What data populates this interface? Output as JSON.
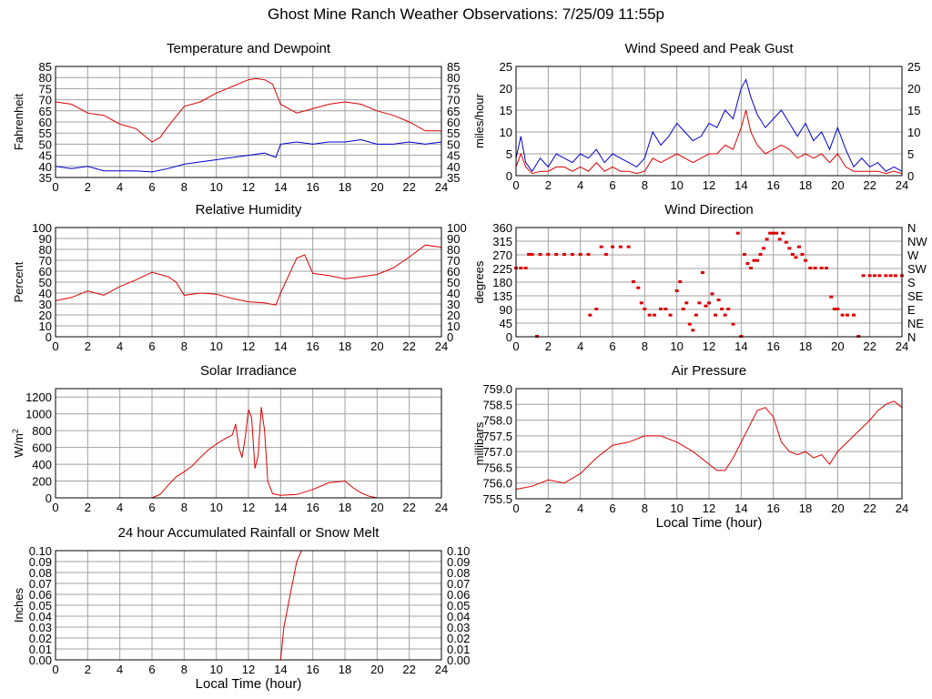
{
  "page": {
    "title": "Ghost Mine Ranch Weather Observations: 7/25/09 11:55p"
  },
  "colors": {
    "red": "#dd0000",
    "blue": "#0000cc",
    "grid": "#a0a0a0",
    "axis": "#000000"
  },
  "chart_data": [
    {
      "id": "temp",
      "type": "line",
      "title": "Temperature and Dewpoint",
      "xlabel": "",
      "ylabel": "Fahrenheit",
      "xlim": [
        0,
        24
      ],
      "ylim": [
        35,
        85
      ],
      "xticks": [
        0,
        2,
        4,
        6,
        8,
        10,
        12,
        14,
        16,
        18,
        20,
        22,
        24
      ],
      "yticks": [
        35,
        40,
        45,
        50,
        55,
        60,
        65,
        70,
        75,
        80,
        85
      ],
      "right_ticks": true,
      "series": [
        {
          "name": "Temperature",
          "color": "red",
          "x": [
            0,
            1,
            2,
            3,
            4,
            5,
            6,
            6.5,
            7,
            8,
            9,
            10,
            11,
            12,
            12.5,
            13,
            13.5,
            14,
            15,
            16,
            17,
            18,
            19,
            20,
            21,
            22,
            23,
            24
          ],
          "y": [
            69,
            68,
            64,
            63,
            59,
            57,
            51,
            53,
            58,
            67,
            69,
            73,
            76,
            79,
            79.5,
            79,
            77,
            68,
            64,
            66,
            68,
            69,
            68,
            65,
            63,
            60,
            56,
            56
          ]
        },
        {
          "name": "Dewpoint",
          "color": "blue",
          "x": [
            0,
            1,
            2,
            3,
            4,
            5,
            6,
            7,
            8,
            9,
            10,
            11,
            12,
            13,
            13.7,
            14,
            15,
            16,
            17,
            18,
            19,
            20,
            21,
            22,
            23,
            24
          ],
          "y": [
            40,
            39,
            40,
            38,
            38,
            38,
            37.5,
            39,
            41,
            42,
            43,
            44,
            45,
            46,
            44,
            50,
            51,
            50,
            51,
            51,
            52,
            50,
            50,
            51,
            50,
            51
          ]
        }
      ]
    },
    {
      "id": "wind",
      "type": "line",
      "title": "Wind Speed and Peak Gust",
      "xlabel": "",
      "ylabel": "miles/hour",
      "xlim": [
        0,
        24
      ],
      "ylim": [
        0,
        25
      ],
      "xticks": [
        0,
        2,
        4,
        6,
        8,
        10,
        12,
        14,
        16,
        18,
        20,
        22,
        24
      ],
      "yticks": [
        0,
        5,
        10,
        15,
        20,
        25
      ],
      "right_ticks": true,
      "series": [
        {
          "name": "Peak Gust",
          "color": "blue",
          "x": [
            0,
            0.3,
            0.6,
            1,
            1.5,
            2,
            2.5,
            3,
            3.5,
            4,
            4.5,
            5,
            5.5,
            6,
            6.5,
            7,
            7.5,
            8,
            8.5,
            9,
            9.5,
            10,
            10.5,
            11,
            11.5,
            12,
            12.5,
            13,
            13.5,
            14,
            14.3,
            14.6,
            15,
            15.5,
            16,
            16.5,
            17,
            17.5,
            18,
            18.5,
            19,
            19.5,
            20,
            20.5,
            21,
            21.5,
            22,
            22.5,
            23,
            23.5,
            24
          ],
          "y": [
            4,
            9,
            3,
            1,
            4,
            2,
            5,
            4,
            3,
            5,
            4,
            6,
            3,
            5,
            4,
            3,
            2,
            4,
            10,
            7,
            9,
            12,
            10,
            8,
            9,
            12,
            11,
            15,
            13,
            20,
            22,
            18,
            14,
            11,
            13,
            15,
            12,
            9,
            12,
            8,
            10,
            6,
            11,
            6,
            2,
            4,
            2,
            3,
            1,
            2,
            1
          ]
        },
        {
          "name": "Wind Speed",
          "color": "red",
          "x": [
            0,
            0.3,
            0.6,
            1,
            1.5,
            2,
            2.5,
            3,
            3.5,
            4,
            4.5,
            5,
            5.5,
            6,
            6.5,
            7,
            7.5,
            8,
            8.5,
            9,
            9.5,
            10,
            10.5,
            11,
            11.5,
            12,
            12.5,
            13,
            13.5,
            14,
            14.3,
            14.6,
            15,
            15.5,
            16,
            16.5,
            17,
            17.5,
            18,
            18.5,
            19,
            19.5,
            20,
            20.5,
            21,
            21.5,
            22,
            22.5,
            23,
            23.5,
            24
          ],
          "y": [
            2,
            5,
            2,
            0.5,
            1,
            1,
            2,
            2,
            1,
            2,
            1,
            3,
            1,
            2,
            1,
            1,
            0.5,
            1,
            4,
            3,
            4,
            5,
            4,
            3,
            4,
            5,
            5,
            7,
            6,
            11,
            15,
            10,
            7,
            5,
            6,
            7,
            6,
            4,
            5,
            4,
            5,
            3,
            5,
            2,
            1,
            1,
            1,
            1,
            0.5,
            1,
            0.5
          ]
        }
      ]
    },
    {
      "id": "humidity",
      "type": "line",
      "title": "Relative Humidity",
      "xlabel": "",
      "ylabel": "Percent",
      "xlim": [
        0,
        24
      ],
      "ylim": [
        0,
        100
      ],
      "xticks": [
        0,
        2,
        4,
        6,
        8,
        10,
        12,
        14,
        16,
        18,
        20,
        22,
        24
      ],
      "yticks": [
        0,
        10,
        20,
        30,
        40,
        50,
        60,
        70,
        80,
        90,
        100
      ],
      "right_ticks": true,
      "series": [
        {
          "name": "Relative Humidity",
          "color": "red",
          "x": [
            0,
            1,
            2,
            3,
            4,
            5,
            6,
            7,
            7.5,
            8,
            9,
            10,
            11,
            12,
            13,
            13.7,
            14,
            15,
            15.5,
            16,
            17,
            18,
            19,
            20,
            21,
            22,
            23,
            24
          ],
          "y": [
            33,
            36,
            42,
            38,
            46,
            52,
            59,
            55,
            50,
            38,
            40,
            39,
            35,
            32,
            31,
            29,
            40,
            72,
            75,
            58,
            56,
            53,
            55,
            57,
            63,
            73,
            84,
            82
          ]
        }
      ]
    },
    {
      "id": "winddir",
      "type": "scatter",
      "title": "Wind Direction",
      "xlabel": "",
      "ylabel": "degrees",
      "xlim": [
        0,
        24
      ],
      "ylim": [
        0,
        360
      ],
      "xticks": [
        0,
        2,
        4,
        6,
        8,
        10,
        12,
        14,
        16,
        18,
        20,
        22,
        24
      ],
      "yticks": [
        0,
        45,
        90,
        135,
        180,
        225,
        270,
        315,
        360
      ],
      "right_labels": [
        "N",
        "NE",
        "E",
        "SE",
        "S",
        "SW",
        "W",
        "NW",
        "N"
      ],
      "series": [
        {
          "name": "Wind Direction",
          "color": "red",
          "x": [
            0,
            0.3,
            0.6,
            0.8,
            1,
            1.3,
            1.5,
            2,
            2.5,
            3,
            3.5,
            4,
            4.5,
            4.6,
            5,
            5.3,
            5.6,
            6,
            6.5,
            7,
            7.3,
            7.6,
            7.8,
            8,
            8.3,
            8.6,
            9,
            9.3,
            9.6,
            10,
            10.2,
            10.4,
            10.6,
            10.8,
            11,
            11.2,
            11.4,
            11.6,
            11.8,
            12,
            12.2,
            12.4,
            12.6,
            12.8,
            13,
            13.2,
            13.5,
            13.8,
            14,
            14.2,
            14.4,
            14.6,
            14.8,
            15,
            15.2,
            15.4,
            15.6,
            15.8,
            16,
            16.2,
            16.4,
            16.6,
            16.8,
            17,
            17.2,
            17.4,
            17.6,
            17.8,
            18,
            18.3,
            18.6,
            19,
            19.3,
            19.6,
            19.8,
            20,
            20.3,
            20.6,
            21,
            21.3,
            21.6,
            22,
            22.3,
            22.6,
            23,
            23.3,
            23.6,
            24
          ],
          "y": [
            225,
            225,
            225,
            270,
            270,
            0,
            270,
            270,
            270,
            270,
            270,
            270,
            270,
            70,
            90,
            295,
            270,
            295,
            295,
            295,
            180,
            160,
            110,
            90,
            70,
            70,
            90,
            90,
            70,
            150,
            180,
            90,
            110,
            40,
            20,
            70,
            110,
            210,
            100,
            110,
            140,
            70,
            120,
            90,
            70,
            90,
            40,
            340,
            0,
            270,
            240,
            225,
            250,
            250,
            270,
            290,
            320,
            340,
            340,
            340,
            320,
            340,
            310,
            290,
            270,
            260,
            295,
            270,
            250,
            225,
            225,
            225,
            225,
            130,
            90,
            90,
            70,
            70,
            70,
            0,
            200,
            200,
            200,
            200,
            200,
            200,
            200,
            200
          ]
        }
      ]
    },
    {
      "id": "solar",
      "type": "line",
      "title": "Solar Irradiance",
      "xlabel": "",
      "ylabel": "W/m2",
      "xlim": [
        0,
        24
      ],
      "ylim": [
        0,
        1300
      ],
      "xticks": [
        0,
        2,
        4,
        6,
        8,
        10,
        12,
        14,
        16,
        18,
        20,
        22,
        24
      ],
      "yticks": [
        0,
        200,
        400,
        600,
        800,
        1000,
        1200
      ],
      "right_ticks": false,
      "series": [
        {
          "name": "Solar Irradiance",
          "color": "red",
          "x": [
            0,
            6,
            6.5,
            7,
            7.5,
            8,
            8.5,
            9,
            9.5,
            10,
            10.5,
            11,
            11.2,
            11.4,
            11.6,
            11.8,
            12,
            12.2,
            12.4,
            12.6,
            12.8,
            13,
            13.2,
            13.5,
            14,
            15,
            16,
            17,
            18,
            18.5,
            19,
            19.5,
            20,
            21,
            24
          ],
          "y": [
            0,
            0,
            40,
            150,
            250,
            310,
            380,
            480,
            570,
            640,
            700,
            750,
            880,
            600,
            480,
            720,
            1050,
            950,
            350,
            500,
            1080,
            800,
            200,
            50,
            30,
            40,
            100,
            180,
            200,
            120,
            60,
            20,
            0,
            0,
            0
          ]
        }
      ]
    },
    {
      "id": "pressure",
      "type": "line",
      "title": "Air Pressure",
      "xlabel": "Local Time (hour)",
      "ylabel": "millibars",
      "xlim": [
        0,
        24
      ],
      "ylim": [
        755.5,
        759.0
      ],
      "xticks": [
        0,
        2,
        4,
        6,
        8,
        10,
        12,
        14,
        16,
        18,
        20,
        22,
        24
      ],
      "yticks": [
        755.5,
        756.0,
        756.5,
        757.0,
        757.5,
        758.0,
        758.5,
        759.0
      ],
      "right_ticks": false,
      "series": [
        {
          "name": "Air Pressure",
          "color": "red",
          "x": [
            0,
            1,
            2,
            3,
            4,
            5,
            6,
            7,
            8,
            9,
            10,
            11,
            12,
            12.5,
            13,
            13.5,
            14,
            14.5,
            15,
            15.5,
            16,
            16.5,
            17,
            17.5,
            18,
            18.5,
            19,
            19.5,
            20,
            21,
            22,
            22.5,
            23,
            23.5,
            24
          ],
          "y": [
            755.8,
            755.9,
            756.1,
            756.0,
            756.3,
            756.8,
            757.2,
            757.3,
            757.5,
            757.5,
            757.3,
            757.0,
            756.6,
            756.4,
            756.4,
            756.8,
            757.3,
            757.8,
            758.3,
            758.4,
            758.1,
            757.3,
            757.0,
            756.9,
            757.0,
            756.8,
            756.9,
            756.6,
            757.0,
            757.5,
            758.0,
            758.3,
            758.5,
            758.6,
            758.4
          ]
        }
      ]
    },
    {
      "id": "rain",
      "type": "line",
      "title": "24 hour Accumulated Rainfall or Snow Melt",
      "xlabel": "Local Time (hour)",
      "ylabel": "Inches",
      "xlim": [
        0,
        24
      ],
      "ylim": [
        0,
        0.1
      ],
      "xticks": [
        0,
        2,
        4,
        6,
        8,
        10,
        12,
        14,
        16,
        18,
        20,
        22,
        24
      ],
      "yticks": [
        0.0,
        0.01,
        0.02,
        0.03,
        0.04,
        0.05,
        0.06,
        0.07,
        0.08,
        0.09,
        0.1
      ],
      "right_ticks": true,
      "series": [
        {
          "name": "Rainfall",
          "color": "red",
          "x": [
            0,
            14,
            14.2,
            14.4,
            14.6,
            14.8,
            15,
            15.3,
            15.5,
            24
          ],
          "y": [
            0,
            0,
            0.03,
            0.045,
            0.06,
            0.075,
            0.09,
            0.1,
            0.1,
            0.1
          ]
        }
      ]
    }
  ]
}
